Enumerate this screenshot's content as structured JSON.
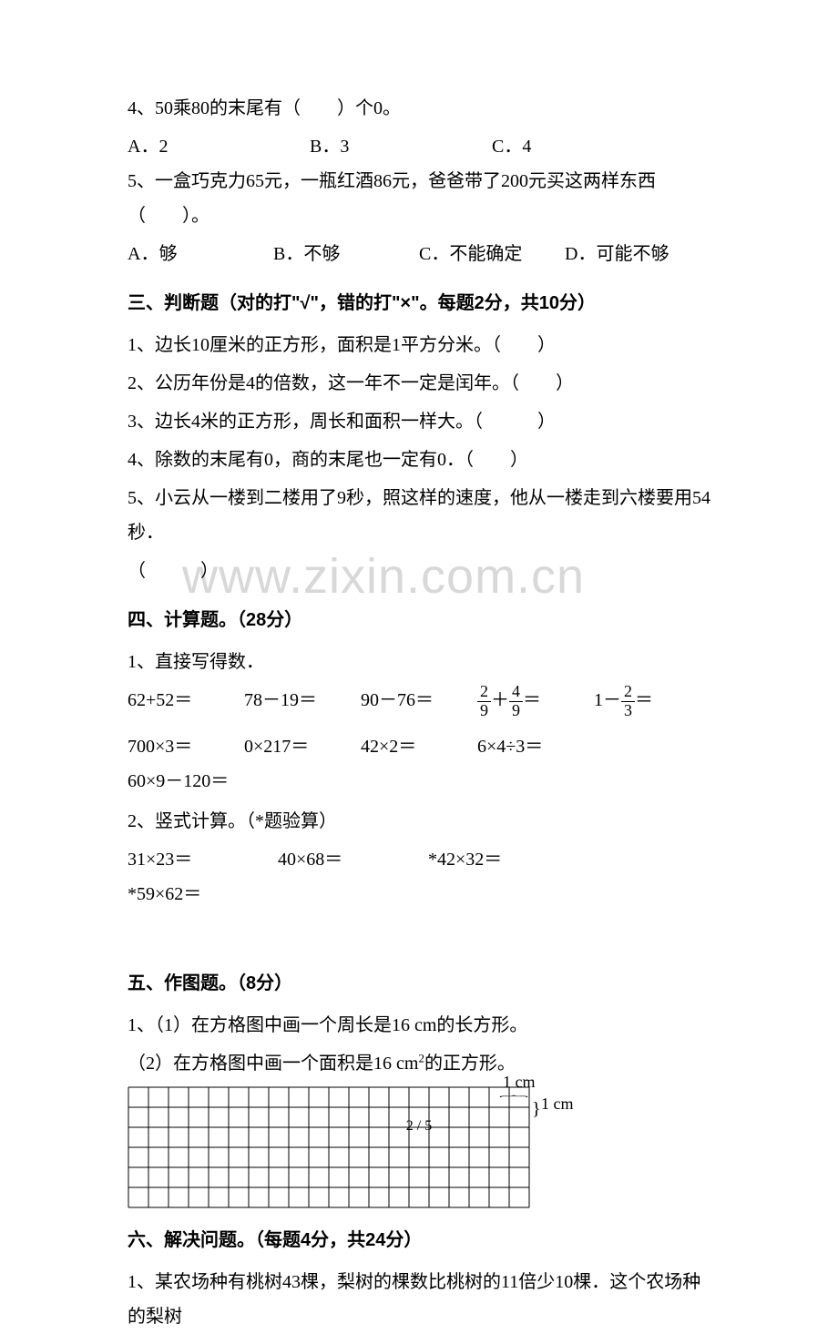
{
  "watermark": "www.zixin.com.cn",
  "q4": {
    "text": "4、50乘80的末尾有（　　）个0。",
    "optA": "A．2",
    "optB": "B．3",
    "optC": "C．4"
  },
  "q5": {
    "text": "5、一盒巧克力65元，一瓶红酒86元，爸爸带了200元买这两样东西（　　）。",
    "optA": "A．够",
    "optB": "B．不够",
    "optC": "C．不能确定",
    "optD": "D．可能不够"
  },
  "section3": {
    "header": "三、判断题（对的打\"√\"，错的打\"×\"。每题2分，共10分）",
    "j1": "1、边长10厘米的正方形，面积是1平方分米。（　　）",
    "j2": "2、公历年份是4的倍数，这一年不一定是闰年。（　　）",
    "j3": "3、边长4米的正方形，周长和面积一样大。（　　　）",
    "j4": "4、除数的末尾有0，商的末尾也一定有0．（　　）",
    "j5": "5、小云从一楼到二楼用了9秒，照这样的速度，他从一楼走到六楼要用54秒．",
    "j5b": "（　　　）"
  },
  "section4": {
    "header": "四、计算题。（28分）",
    "t1": "1、直接写得数．",
    "c1": "62+52＝",
    "c2": "78－19＝",
    "c3": "90－76＝",
    "c4a": "＋",
    "c4b": "＝",
    "c5a": "1－",
    "c5b": "＝",
    "f1n": "2",
    "f1d": "9",
    "f2n": "4",
    "f2d": "9",
    "f3n": "2",
    "f3d": "3",
    "c6": "700×3＝",
    "c7": "0×217＝",
    "c8": "42×2＝",
    "c9": "6×4÷3＝",
    "c10": "60×9－120＝",
    "t2": "2、竖式计算。（*题验算）",
    "v1": "31×23＝",
    "v2": "40×68＝",
    "v3": "*42×32＝",
    "v4": "*59×62＝"
  },
  "section5": {
    "header": "五、作图题。（8分）",
    "t1": "1、（1）在方格图中画一个周长是16 cm的长方形。",
    "t2": "（2）在方格图中画一个面积是16 cm",
    "t2sup": "2",
    "t2end": "的正方形。",
    "label_top": "1 cm",
    "label_right": "1 cm"
  },
  "section6": {
    "header": "六、解决问题。（每题4分，共24分）",
    "t1": "1、某农场种有桃树43棵，梨树的棵数比桃树的11倍少10棵．这个农场种的梨树"
  },
  "page_num": "2 / 5",
  "grid": {
    "cols": 20,
    "rows": 6,
    "cell_size": 22,
    "stroke": "#000000",
    "stroke_width": 1
  }
}
